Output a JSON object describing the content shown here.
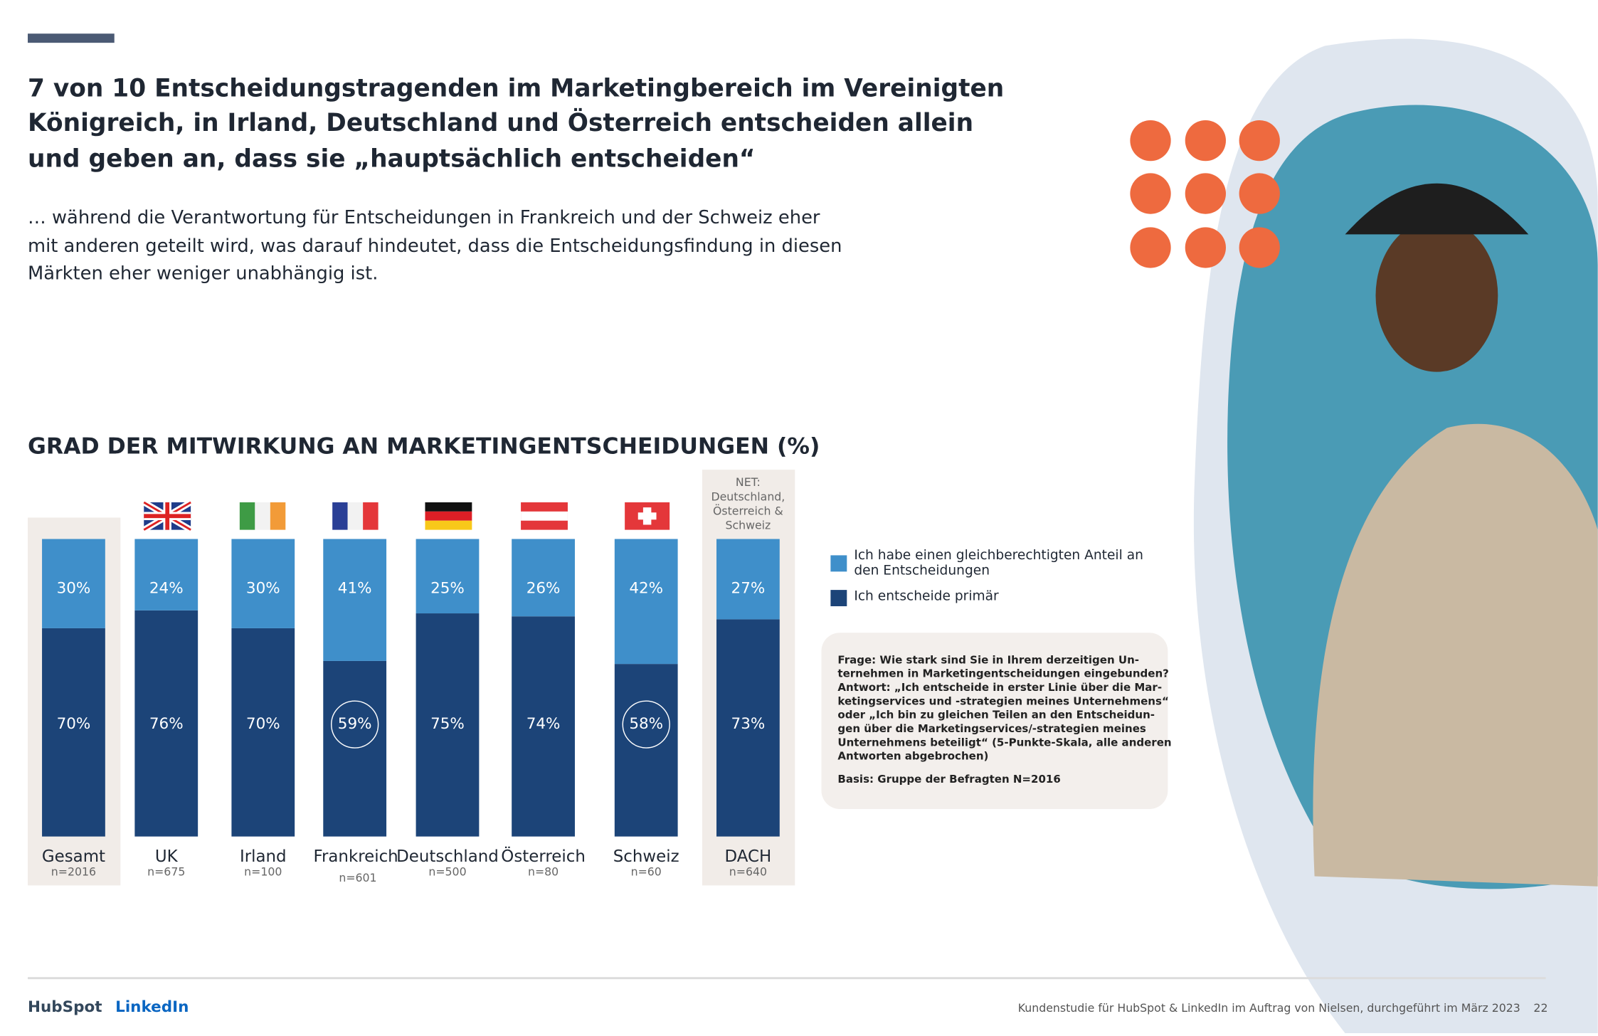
{
  "header": {
    "title_lines": [
      "7 von 10 Entscheidungstragenden im Marketingbereich im Vereinigten",
      "Königreich, in Irland, Deutschland und Österreich entscheiden allein",
      "und geben an, dass sie „hauptsächlich entscheiden“"
    ],
    "subtitle_lines": [
      "… während die Verantwortung für Entscheidungen in Frankreich und der Schweiz eher",
      "mit anderen geteilt wird, was darauf hindeutet, dass die Entscheidungsfindung in diesen",
      "Märkten eher weniger unabhängig ist."
    ]
  },
  "chart_data": {
    "type": "stacked-bar",
    "title": "GRAD DER MITWIRKUNG AN MARKETINGENTSCHEIDUNGEN (%)",
    "categories": [
      "Gesamt",
      "UK",
      "Irland",
      "Frankreich",
      "Deutschland",
      "Österreich",
      "Schweiz",
      "DACH"
    ],
    "sample_sizes": [
      "n=2016",
      "n=675",
      "n=100",
      "n=601",
      "n=500",
      "n=80",
      "n=60",
      "n=640"
    ],
    "shaded": [
      true,
      false,
      false,
      false,
      false,
      false,
      false,
      true
    ],
    "highlighted": [
      false,
      false,
      false,
      true,
      false,
      false,
      true,
      false
    ],
    "net_annotation": [
      "NET:",
      "Deutschland,",
      "Österreich &",
      "Schweiz"
    ],
    "ylim": [
      0,
      100
    ],
    "series": [
      {
        "name": "Ich entscheide primär",
        "color": "#1c4478",
        "values": [
          70,
          76,
          70,
          59,
          75,
          74,
          58,
          73
        ],
        "value_labels": [
          "70%",
          "76%",
          "70%",
          "59%",
          "75%",
          "74%",
          "58%",
          "73%"
        ]
      },
      {
        "name": "Ich habe einen gleichberechtigten Anteil an den Entscheidungen",
        "color": "#3f8fca",
        "values": [
          30,
          24,
          30,
          41,
          25,
          26,
          42,
          27
        ],
        "value_labels": [
          "30%",
          "24%",
          "30%",
          "41%",
          "25%",
          "26%",
          "42%",
          "27%"
        ]
      }
    ],
    "legend_order": [
      1,
      0
    ]
  },
  "question_box": {
    "lines": [
      "Frage: Wie stark sind Sie in Ihrem derzeitigen Un-",
      "ternehmen in Marketingentscheidungen eingebunden?",
      "Antwort: „Ich entscheide in erster Linie über die Mar-",
      "ketingservices und -strategien meines Unternehmens“",
      "oder „Ich bin zu gleichen Teilen an den Entscheidun-",
      "gen über die Marketingservices/-strategien meines",
      "Unternehmens beteiligt“ (5-Punkte-Skala, alle anderen",
      "Antworten abgebrochen)",
      "Basis: Gruppe der Befragten N=2016"
    ]
  },
  "footer": {
    "logo_hubspot": "HubSpot",
    "logo_linkedin": "LinkedIn",
    "note": "Kundenstudie für HubSpot & LinkedIn im Auftrag von Nielsen, durchgeführt im März 2023",
    "page": "22"
  }
}
